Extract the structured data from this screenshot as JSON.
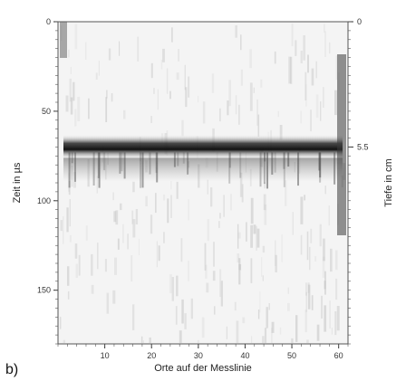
{
  "panel_label": "b)",
  "chart_data": {
    "type": "heatmap",
    "title": "",
    "xlabel": "Orte auf der Messlinie",
    "ylabel": "Zeit in µs",
    "y2label": "Tiefe in cm",
    "x_ticks": [
      "10",
      "20",
      "30",
      "40",
      "50",
      "60"
    ],
    "y_ticks": [
      "0",
      "50",
      "100",
      "150"
    ],
    "y2_ticks": [
      "0",
      "5.5"
    ],
    "xlim": [
      0,
      62
    ],
    "ylim": [
      0,
      180
    ],
    "grid": false,
    "reflector": {
      "label": "strong horizontal reflection",
      "time_us": 70,
      "depth_cm": 5.5,
      "x_start": 0,
      "x_end": 62
    },
    "colors": {
      "background": "#ffffff",
      "reflection": "#1a1a1a",
      "noise": "#bdbdbd"
    }
  }
}
